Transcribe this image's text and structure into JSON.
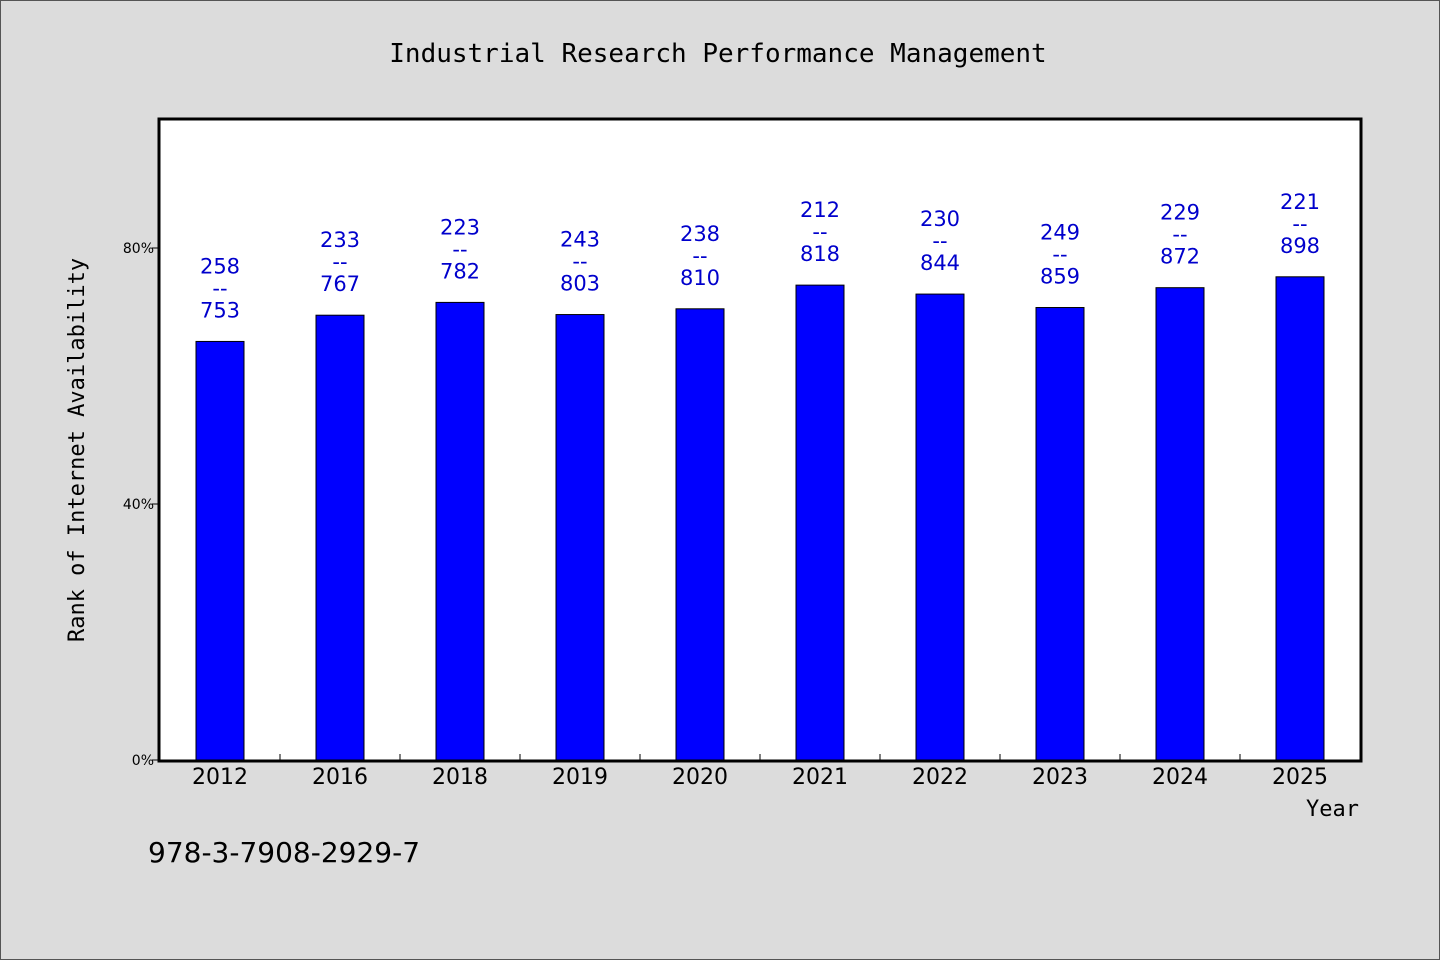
{
  "chart_data": {
    "type": "bar",
    "title": "Industrial Research Performance Management",
    "xlabel": "Year",
    "ylabel": "Rank of Internet Availability",
    "categories": [
      "2012",
      "2016",
      "2018",
      "2019",
      "2020",
      "2021",
      "2022",
      "2023",
      "2024",
      "2025"
    ],
    "values": [
      65.4,
      69.5,
      71.5,
      69.6,
      70.5,
      74.2,
      72.8,
      70.7,
      73.8,
      75.5
    ],
    "data_labels": [
      {
        "top": "258",
        "sep": "--",
        "bottom": "753"
      },
      {
        "top": "233",
        "sep": "--",
        "bottom": "767"
      },
      {
        "top": "223",
        "sep": "--",
        "bottom": "782"
      },
      {
        "top": "243",
        "sep": "--",
        "bottom": "803"
      },
      {
        "top": "238",
        "sep": "--",
        "bottom": "810"
      },
      {
        "top": "212",
        "sep": "--",
        "bottom": "818"
      },
      {
        "top": "230",
        "sep": "--",
        "bottom": "844"
      },
      {
        "top": "249",
        "sep": "--",
        "bottom": "859"
      },
      {
        "top": "229",
        "sep": "--",
        "bottom": "872"
      },
      {
        "top": "221",
        "sep": "--",
        "bottom": "898"
      }
    ],
    "ylim": [
      0,
      100
    ],
    "yticks": [
      0,
      40,
      80
    ],
    "ytick_labels": [
      "0%",
      "40%",
      "80%"
    ],
    "grid": false,
    "legend": "none",
    "colors": {
      "bar": "#0000ff",
      "bar_edge": "#000000",
      "data_label": "#0000cc",
      "plot_background": "#ffffff",
      "page_background": "#dcdcdc"
    }
  },
  "footnote": "978-3-7908-2929-7"
}
